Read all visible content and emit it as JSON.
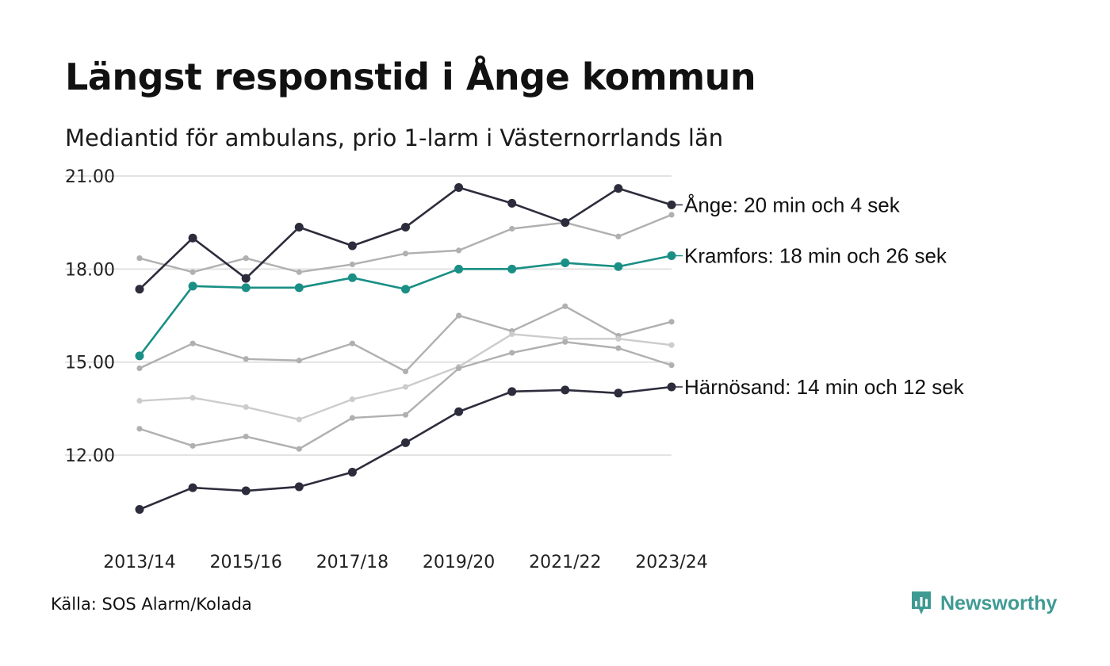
{
  "title": "Längst responstid i Ånge kommun",
  "subtitle": "Mediantid för ambulans, prio 1-larm i Västernorrlands län",
  "source": "Källa: SOS Alarm/Kolada",
  "brand": {
    "name": "Newsworthy",
    "icon": "newsworthy-logo-icon",
    "color": "#3f9a93"
  },
  "chart_data": {
    "type": "line",
    "title": "Längst responstid i Ånge kommun",
    "subtitle": "Mediantid för ambulans, prio 1-larm i Västernorrlands län",
    "x": [
      "2013/14",
      "2014/15",
      "2015/16",
      "2016/17",
      "2017/18",
      "2018/19",
      "2019/20",
      "2020/21",
      "2021/22",
      "2022/23",
      "2023/24"
    ],
    "x_tick_labels": [
      "2013/14",
      "2015/16",
      "2017/18",
      "2019/20",
      "2021/22",
      "2023/24"
    ],
    "ylim": [
      9.7,
      21.0
    ],
    "y_ticks": [
      12,
      15,
      18,
      21
    ],
    "y_tick_labels": [
      "12.00",
      "15.00",
      "18.00",
      "21.00"
    ],
    "grid": true,
    "colors": {
      "highlight_dark": "#2d2c3c",
      "highlight_teal": "#1a8f85",
      "other_gray": "#aaaaaa",
      "other_light": "#cccccc",
      "grid": "#e3e3e3"
    },
    "series": [
      {
        "values": [
          18.35,
          17.9,
          18.35,
          17.9,
          18.15,
          18.5,
          18.6,
          19.3,
          19.5,
          19.05,
          19.75
        ],
        "color": "#b0b0b0",
        "highlight": false
      },
      {
        "values": [
          14.8,
          15.6,
          15.1,
          15.05,
          15.6,
          14.7,
          16.5,
          16.0,
          16.8,
          15.85,
          16.3
        ],
        "color": "#b0b0b0",
        "highlight": false
      },
      {
        "values": [
          13.75,
          13.85,
          13.55,
          13.15,
          13.8,
          14.2,
          14.85,
          15.9,
          15.75,
          15.75,
          15.55
        ],
        "color": "#cccccc",
        "highlight": false
      },
      {
        "values": [
          12.85,
          12.3,
          12.6,
          12.2,
          13.2,
          13.3,
          14.8,
          15.3,
          15.65,
          15.45,
          14.9
        ],
        "color": "#b0b0b0",
        "highlight": false
      },
      {
        "name": "Härnösand",
        "values": [
          10.25,
          10.95,
          10.85,
          10.98,
          11.45,
          12.4,
          13.4,
          14.05,
          14.1,
          14.0,
          14.2
        ],
        "color": "#2d2c3c",
        "highlight": true,
        "label": "Härnösand: 14 min och 12 sek"
      },
      {
        "name": "Kramfors",
        "values": [
          15.2,
          17.45,
          17.4,
          17.4,
          17.72,
          17.35,
          18.0,
          18.0,
          18.2,
          18.08,
          18.43
        ],
        "color": "#1a8f85",
        "highlight": true,
        "label": "Kramfors: 18 min och 26 sek"
      },
      {
        "name": "Ånge",
        "values": [
          17.35,
          19.0,
          17.7,
          19.35,
          18.75,
          19.35,
          20.63,
          20.12,
          19.5,
          20.6,
          20.07
        ],
        "color": "#2d2c3c",
        "highlight": true,
        "label": "Ånge: 20 min och 4 sek"
      }
    ]
  }
}
